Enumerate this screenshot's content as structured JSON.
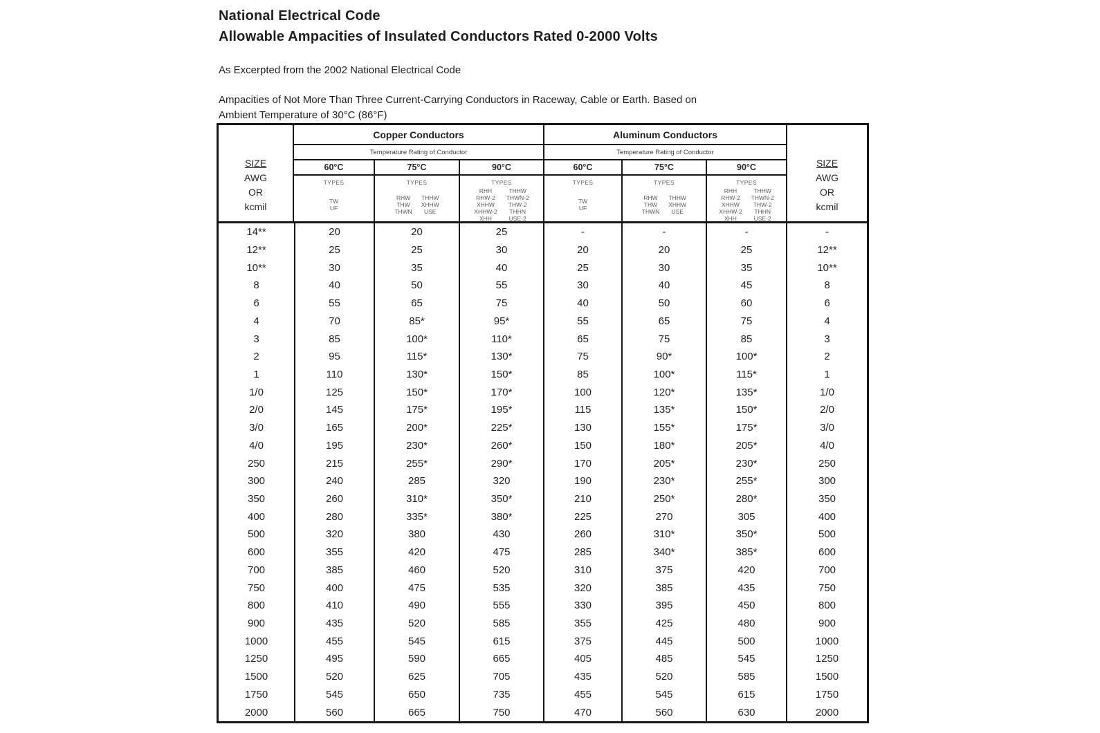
{
  "document": {
    "title": "National Electrical Code",
    "subtitle": "Allowable Ampacities of Insulated Conductors Rated 0-2000 Volts",
    "source_note": "As Excerpted from the 2002 National Electrical Code",
    "description_line1": "Ampacities of Not More Than Three Current-Carrying Conductors in Raceway, Cable or Earth.  Based on",
    "description_line2": "Ambient Temperature of 30°C (86°F)"
  },
  "table": {
    "size_column": {
      "line1": "SIZE",
      "line2": "AWG",
      "line3": "OR",
      "line4": "kcmil"
    },
    "temp_rating_label": "Temperature Rating of Conductor",
    "types_label": "TYPES",
    "groups": [
      {
        "label": "Copper Conductors",
        "columns": [
          {
            "temp": "60°C",
            "types": [
              [
                "TW",
                "UF"
              ]
            ]
          },
          {
            "temp": "75°C",
            "types": [
              [
                "RHW",
                "THW",
                "THWN"
              ],
              [
                "THHW",
                "XHHW",
                "USE"
              ]
            ]
          },
          {
            "temp": "90°C",
            "types": [
              [
                "RHH",
                "RHW-2",
                "XHHW",
                "XHHW-2",
                "XHH"
              ],
              [
                "THHW",
                "THWN-2",
                "THW-2",
                "THHN",
                "USE-2"
              ]
            ]
          }
        ]
      },
      {
        "label": "Aluminum Conductors",
        "columns": [
          {
            "temp": "60°C",
            "types": [
              [
                "TW",
                "UF"
              ]
            ]
          },
          {
            "temp": "75°C",
            "types": [
              [
                "RHW",
                "THW",
                "THWN"
              ],
              [
                "THHW",
                "XHHW",
                "USE"
              ]
            ]
          },
          {
            "temp": "90°C",
            "types": [
              [
                "RHH",
                "RHW-2",
                "XHHW",
                "XHHW-2",
                "XHH"
              ],
              [
                "THHW",
                "THWN-2",
                "THW-2",
                "THHN",
                "USE-2"
              ]
            ]
          }
        ]
      }
    ],
    "rows": [
      [
        "14**",
        "20",
        "20",
        "25",
        "-",
        "-",
        "-",
        "-"
      ],
      [
        "12**",
        "25",
        "25",
        "30",
        "20",
        "20",
        "25",
        "12**"
      ],
      [
        "10**",
        "30",
        "35",
        "40",
        "25",
        "30",
        "35",
        "10**"
      ],
      [
        "8",
        "40",
        "50",
        "55",
        "30",
        "40",
        "45",
        "8"
      ],
      [
        "6",
        "55",
        "65",
        "75",
        "40",
        "50",
        "60",
        "6"
      ],
      [
        "4",
        "70",
        "85*",
        "95*",
        "55",
        "65",
        "75",
        "4"
      ],
      [
        "3",
        "85",
        "100*",
        "110*",
        "65",
        "75",
        "85",
        "3"
      ],
      [
        "2",
        "95",
        "115*",
        "130*",
        "75",
        "90*",
        "100*",
        "2"
      ],
      [
        "1",
        "110",
        "130*",
        "150*",
        "85",
        "100*",
        "115*",
        "1"
      ],
      [
        "1/0",
        "125",
        "150*",
        "170*",
        "100",
        "120*",
        "135*",
        "1/0"
      ],
      [
        "2/0",
        "145",
        "175*",
        "195*",
        "115",
        "135*",
        "150*",
        "2/0"
      ],
      [
        "3/0",
        "165",
        "200*",
        "225*",
        "130",
        "155*",
        "175*",
        "3/0"
      ],
      [
        "4/0",
        "195",
        "230*",
        "260*",
        "150",
        "180*",
        "205*",
        "4/0"
      ],
      [
        "250",
        "215",
        "255*",
        "290*",
        "170",
        "205*",
        "230*",
        "250"
      ],
      [
        "300",
        "240",
        "285",
        "320",
        "190",
        "230*",
        "255*",
        "300"
      ],
      [
        "350",
        "260",
        "310*",
        "350*",
        "210",
        "250*",
        "280*",
        "350"
      ],
      [
        "400",
        "280",
        "335*",
        "380*",
        "225",
        "270",
        "305",
        "400"
      ],
      [
        "500",
        "320",
        "380",
        "430",
        "260",
        "310*",
        "350*",
        "500"
      ],
      [
        "600",
        "355",
        "420",
        "475",
        "285",
        "340*",
        "385*",
        "600"
      ],
      [
        "700",
        "385",
        "460",
        "520",
        "310",
        "375",
        "420",
        "700"
      ],
      [
        "750",
        "400",
        "475",
        "535",
        "320",
        "385",
        "435",
        "750"
      ],
      [
        "800",
        "410",
        "490",
        "555",
        "330",
        "395",
        "450",
        "800"
      ],
      [
        "900",
        "435",
        "520",
        "585",
        "355",
        "425",
        "480",
        "900"
      ],
      [
        "1000",
        "455",
        "545",
        "615",
        "375",
        "445",
        "500",
        "1000"
      ],
      [
        "1250",
        "495",
        "590",
        "665",
        "405",
        "485",
        "545",
        "1250"
      ],
      [
        "1500",
        "520",
        "625",
        "705",
        "435",
        "520",
        "585",
        "1500"
      ],
      [
        "1750",
        "545",
        "650",
        "735",
        "455",
        "545",
        "615",
        "1750"
      ],
      [
        "2000",
        "560",
        "665",
        "750",
        "470",
        "560",
        "630",
        "2000"
      ]
    ]
  },
  "colors": {
    "text": "#1f1f1f",
    "muted_text": "#5a5a62",
    "border": "#161616",
    "background": "#ffffff"
  }
}
